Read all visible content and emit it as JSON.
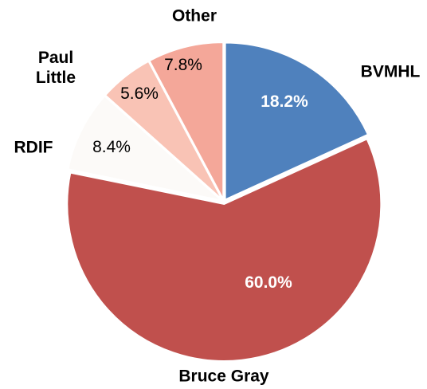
{
  "chart_data": {
    "type": "pie",
    "categories": [
      "BVMHL",
      "Bruce Gray",
      "RDIF",
      "Paul Little",
      "Other"
    ],
    "values": [
      18.2,
      60.0,
      8.4,
      5.6,
      7.8
    ],
    "value_labels": [
      "18.2%",
      "60.0%",
      "8.4%",
      "5.6%",
      "7.8%"
    ],
    "colors": [
      "#4f81bd",
      "#c0504d",
      "#fcfaf8",
      "#f9c3b5",
      "#f4a799"
    ]
  }
}
